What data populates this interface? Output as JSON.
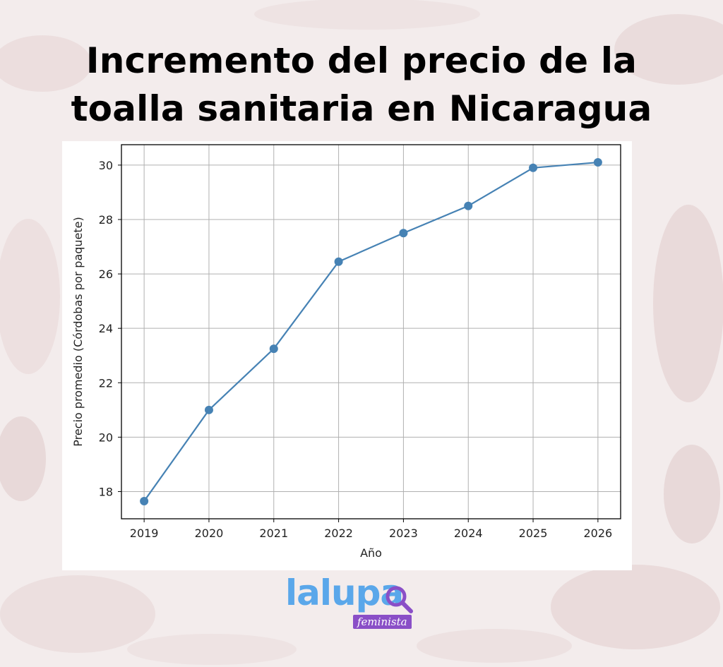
{
  "header": {
    "title_line1": "Incremento del precio de la",
    "title_line2": "toalla sanitaria en Nicaragua"
  },
  "brand": {
    "wordmark": "lalupa",
    "tagline": "feminista",
    "icon": "magnifier-icon",
    "colors": {
      "wordmark": "#5aa7ea",
      "badge": "#8a4fc7"
    }
  },
  "chart_data": {
    "type": "line",
    "title": "",
    "xlabel": "Año",
    "ylabel": "Precio promedio (Córdobas por paquete)",
    "x": [
      2019,
      2020,
      2021,
      2022,
      2023,
      2024,
      2025,
      2026
    ],
    "series": [
      {
        "values": [
          17.65,
          21.0,
          23.25,
          26.45,
          27.5,
          28.5,
          29.9,
          30.1
        ],
        "color": "#4682b4",
        "marker": "circle"
      }
    ],
    "xlim": [
      2018.65,
      2026.35
    ],
    "ylim": [
      17.0,
      30.75
    ],
    "yticks": [
      18,
      20,
      22,
      24,
      26,
      28,
      30
    ],
    "xticks": [
      2019,
      2020,
      2021,
      2022,
      2023,
      2024,
      2025,
      2026
    ],
    "grid": true,
    "legend": "none"
  }
}
